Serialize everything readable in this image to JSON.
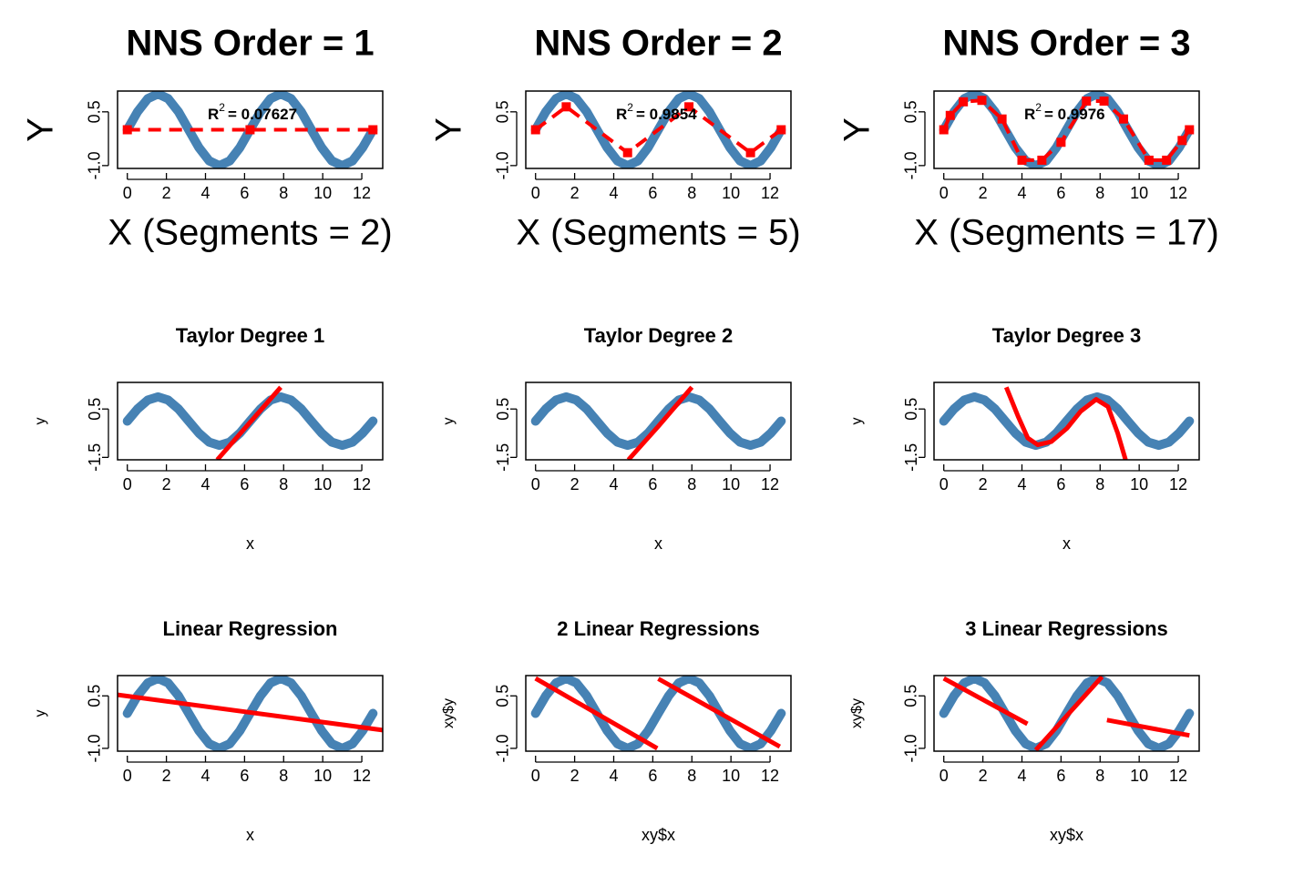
{
  "chart_data": [
    {
      "type": "line",
      "title": "NNS Order = 1",
      "xlabel": "X  (Segments = 2)",
      "ylabel": "Y",
      "annotation": {
        "text": "R",
        "sup": "2",
        "rest": "= 0.07627"
      },
      "xlim": [
        -0.5,
        13.07
      ],
      "xticks": [
        0,
        2,
        4,
        6,
        8,
        10,
        12
      ],
      "ylim": [
        -1.08,
        1.08
      ],
      "yticks": [
        {
          "value": -1,
          "label": "-1.0"
        },
        0.5
      ],
      "series": [
        {
          "color": "#4682b4",
          "x": [
            0,
            0.52,
            1.05,
            1.57,
            2.09,
            2.62,
            3.14,
            3.67,
            4.19,
            4.71,
            5.24,
            5.76,
            6.28,
            6.81,
            7.33,
            7.85,
            8.38,
            8.9,
            9.42,
            9.95,
            10.47,
            11,
            11.52,
            12.04,
            12.57
          ],
          "values": [
            0,
            0.5,
            0.87,
            1,
            0.87,
            0.5,
            0,
            -0.5,
            -0.87,
            -1,
            -0.87,
            -0.5,
            0,
            0.5,
            0.87,
            1,
            0.87,
            0.5,
            0,
            -0.5,
            -0.87,
            -1,
            -0.87,
            -0.5,
            0
          ]
        },
        {
          "color": "#ff0000",
          "dashed": true,
          "markers": true,
          "x": [
            0,
            6.28,
            12.57
          ],
          "values": [
            0,
            0,
            0
          ]
        }
      ]
    },
    {
      "type": "line",
      "title": "NNS Order = 2",
      "xlabel": "X  (Segments = 5)",
      "ylabel": "Y",
      "annotation": {
        "text": "R",
        "sup": "2",
        "rest": "= 0.9854"
      },
      "xlim": [
        -0.5,
        13.07
      ],
      "xticks": [
        0,
        2,
        4,
        6,
        8,
        10,
        12
      ],
      "ylim": [
        -1.08,
        1.08
      ],
      "yticks": [
        {
          "value": -1,
          "label": "-1.0"
        },
        0.5
      ],
      "series": [
        {
          "color": "#4682b4",
          "x": [
            0,
            0.52,
            1.05,
            1.57,
            2.09,
            2.62,
            3.14,
            3.67,
            4.19,
            4.71,
            5.24,
            5.76,
            6.28,
            6.81,
            7.33,
            7.85,
            8.38,
            8.9,
            9.42,
            9.95,
            10.47,
            11,
            11.52,
            12.04,
            12.57
          ],
          "values": [
            0,
            0.5,
            0.87,
            1,
            0.87,
            0.5,
            0,
            -0.5,
            -0.87,
            -1,
            -0.87,
            -0.5,
            0,
            0.5,
            0.87,
            1,
            0.87,
            0.5,
            0,
            -0.5,
            -0.87,
            -1,
            -0.87,
            -0.5,
            0
          ]
        },
        {
          "color": "#ff0000",
          "dashed": true,
          "markers": true,
          "x": [
            0,
            1.57,
            4.71,
            7.85,
            11,
            12.57
          ],
          "values": [
            0,
            0.64,
            -0.64,
            0.64,
            -0.64,
            0
          ]
        }
      ]
    },
    {
      "type": "line",
      "title": "NNS Order = 3",
      "xlabel": "X  (Segments = 17)",
      "ylabel": "Y",
      "annotation": {
        "text": "R",
        "sup": "2",
        "rest": "= 0.9976"
      },
      "xlim": [
        -0.5,
        13.07
      ],
      "xticks": [
        0,
        2,
        4,
        6,
        8,
        10,
        12
      ],
      "ylim": [
        -1.08,
        1.08
      ],
      "yticks": [
        {
          "value": -1,
          "label": "-1.0"
        },
        0.5
      ],
      "series": [
        {
          "color": "#4682b4",
          "x": [
            0,
            0.52,
            1.05,
            1.57,
            2.09,
            2.62,
            3.14,
            3.67,
            4.19,
            4.71,
            5.24,
            5.76,
            6.28,
            6.81,
            7.33,
            7.85,
            8.38,
            8.9,
            9.42,
            9.95,
            10.47,
            11,
            11.52,
            12.04,
            12.57
          ],
          "values": [
            0,
            0.5,
            0.87,
            1,
            0.87,
            0.5,
            0,
            -0.5,
            -0.87,
            -1,
            -0.87,
            -0.5,
            0,
            0.5,
            0.87,
            1,
            0.87,
            0.5,
            0,
            -0.5,
            -0.87,
            -1,
            -0.87,
            -0.5,
            0
          ]
        },
        {
          "color": "#ff0000",
          "dashed": true,
          "markers": true,
          "x": [
            0,
            0.33,
            1.0,
            1.95,
            2.98,
            4.0,
            5.02,
            6.0,
            7.3,
            8.2,
            9.2,
            10.5,
            11.4,
            12.2,
            12.57
          ],
          "values": [
            0,
            0.4,
            0.78,
            0.82,
            0.3,
            -0.85,
            -0.85,
            -0.35,
            0.8,
            0.8,
            0.3,
            -0.85,
            -0.85,
            -0.3,
            0
          ]
        }
      ]
    },
    {
      "type": "line",
      "title": "Taylor Degree 1",
      "xlabel": "x",
      "ylabel": "y",
      "xlim": [
        -0.5,
        13.07
      ],
      "xticks": [
        0,
        2,
        4,
        6,
        8,
        10,
        12
      ],
      "ylim": [
        -1.6,
        1.6
      ],
      "yticks": [
        -1.5,
        0.5
      ],
      "series": [
        {
          "color": "#4682b4",
          "x": [
            0,
            0.52,
            1.05,
            1.57,
            2.09,
            2.62,
            3.14,
            3.67,
            4.19,
            4.71,
            5.24,
            5.76,
            6.28,
            6.81,
            7.33,
            7.85,
            8.38,
            8.9,
            9.42,
            9.95,
            10.47,
            11,
            11.52,
            12.04,
            12.57
          ],
          "values": [
            0,
            0.5,
            0.87,
            1,
            0.87,
            0.5,
            0,
            -0.5,
            -0.87,
            -1,
            -0.87,
            -0.5,
            0,
            0.5,
            0.87,
            1,
            0.87,
            0.5,
            0,
            -0.5,
            -0.87,
            -1,
            -0.87,
            -0.5,
            0
          ]
        },
        {
          "color": "#ff0000",
          "x": [
            4.6,
            7.85
          ],
          "values": [
            -1.6,
            1.4
          ]
        }
      ]
    },
    {
      "type": "line",
      "title": "Taylor Degree 2",
      "xlabel": "x",
      "ylabel": "y",
      "xlim": [
        -0.5,
        13.07
      ],
      "xticks": [
        0,
        2,
        4,
        6,
        8,
        10,
        12
      ],
      "ylim": [
        -1.6,
        1.6
      ],
      "yticks": [
        -1.5,
        0.5
      ],
      "series": [
        {
          "color": "#4682b4",
          "x": [
            0,
            0.52,
            1.05,
            1.57,
            2.09,
            2.62,
            3.14,
            3.67,
            4.19,
            4.71,
            5.24,
            5.76,
            6.28,
            6.81,
            7.33,
            7.85,
            8.38,
            8.9,
            9.42,
            9.95,
            10.47,
            11,
            11.52,
            12.04,
            12.57
          ],
          "values": [
            0,
            0.5,
            0.87,
            1,
            0.87,
            0.5,
            0,
            -0.5,
            -0.87,
            -1,
            -0.87,
            -0.5,
            0,
            0.5,
            0.87,
            1,
            0.87,
            0.5,
            0,
            -0.5,
            -0.87,
            -1,
            -0.87,
            -0.5,
            0
          ]
        },
        {
          "color": "#ff0000",
          "x": [
            4.75,
            6.3,
            8.0
          ],
          "values": [
            -1.6,
            -0.2,
            1.4
          ]
        }
      ]
    },
    {
      "type": "line",
      "title": "Taylor Degree 3",
      "xlabel": "x",
      "ylabel": "y",
      "xlim": [
        -0.5,
        13.07
      ],
      "xticks": [
        0,
        2,
        4,
        6,
        8,
        10,
        12
      ],
      "ylim": [
        -1.6,
        1.6
      ],
      "yticks": [
        -1.5,
        0.5
      ],
      "series": [
        {
          "color": "#4682b4",
          "x": [
            0,
            0.52,
            1.05,
            1.57,
            2.09,
            2.62,
            3.14,
            3.67,
            4.19,
            4.71,
            5.24,
            5.76,
            6.28,
            6.81,
            7.33,
            7.85,
            8.38,
            8.9,
            9.42,
            9.95,
            10.47,
            11,
            11.52,
            12.04,
            12.57
          ],
          "values": [
            0,
            0.5,
            0.87,
            1,
            0.87,
            0.5,
            0,
            -0.5,
            -0.87,
            -1,
            -0.87,
            -0.5,
            0,
            0.5,
            0.87,
            1,
            0.87,
            0.5,
            0,
            -0.5,
            -0.87,
            -1,
            -0.87,
            -0.5,
            0
          ]
        },
        {
          "color": "#ff0000",
          "x": [
            3.2,
            3.8,
            4.3,
            4.8,
            5.5,
            6.3,
            7.0,
            7.8,
            8.4,
            8.9,
            9.3
          ],
          "values": [
            1.4,
            0.2,
            -0.7,
            -0.98,
            -0.85,
            -0.3,
            0.4,
            0.9,
            0.6,
            -0.5,
            -1.6
          ]
        }
      ]
    },
    {
      "type": "line",
      "title": "Linear Regression",
      "xlabel": "x",
      "ylabel": "y",
      "xlim": [
        -0.5,
        13.07
      ],
      "xticks": [
        0,
        2,
        4,
        6,
        8,
        10,
        12
      ],
      "ylim": [
        -1.08,
        1.08
      ],
      "yticks": [
        {
          "value": -1,
          "label": "-1.0"
        },
        0.5
      ],
      "series": [
        {
          "color": "#4682b4",
          "x": [
            0,
            0.52,
            1.05,
            1.57,
            2.09,
            2.62,
            3.14,
            3.67,
            4.19,
            4.71,
            5.24,
            5.76,
            6.28,
            6.81,
            7.33,
            7.85,
            8.38,
            8.9,
            9.42,
            9.95,
            10.47,
            11,
            11.52,
            12.04,
            12.57
          ],
          "values": [
            0,
            0.5,
            0.87,
            1,
            0.87,
            0.5,
            0,
            -0.5,
            -0.87,
            -1,
            -0.87,
            -0.5,
            0,
            0.5,
            0.87,
            1,
            0.87,
            0.5,
            0,
            -0.5,
            -0.87,
            -1,
            -0.87,
            -0.5,
            0
          ]
        },
        {
          "color": "#ff0000",
          "x": [
            -0.5,
            13.07
          ],
          "values": [
            0.53,
            -0.48
          ]
        }
      ]
    },
    {
      "type": "line",
      "title": "2 Linear Regressions",
      "xlabel": "xy$x",
      "ylabel": "xy$y",
      "xlim": [
        -0.5,
        13.07
      ],
      "xticks": [
        0,
        2,
        4,
        6,
        8,
        10,
        12
      ],
      "ylim": [
        -1.08,
        1.08
      ],
      "yticks": [
        {
          "value": -1,
          "label": "-1.0"
        },
        0.5
      ],
      "series": [
        {
          "color": "#4682b4",
          "x": [
            0,
            0.52,
            1.05,
            1.57,
            2.09,
            2.62,
            3.14,
            3.67,
            4.19,
            4.71,
            5.24,
            5.76,
            6.28,
            6.81,
            7.33,
            7.85,
            8.38,
            8.9,
            9.42,
            9.95,
            10.47,
            11,
            11.52,
            12.04,
            12.57
          ],
          "values": [
            0,
            0.5,
            0.87,
            1,
            0.87,
            0.5,
            0,
            -0.5,
            -0.87,
            -1,
            -0.87,
            -0.5,
            0,
            0.5,
            0.87,
            1,
            0.87,
            0.5,
            0,
            -0.5,
            -0.87,
            -1,
            -0.87,
            -0.5,
            0
          ]
        },
        {
          "color": "#ff0000",
          "x": [
            0,
            6.23,
            6.25,
            6.28,
            12.5
          ],
          "values": [
            1.0,
            -1.0,
            null,
            0.99,
            -0.95
          ]
        }
      ]
    },
    {
      "type": "line",
      "title": "3 Linear Regressions",
      "xlabel": "xy$x",
      "ylabel": "xy$y",
      "xlim": [
        -0.5,
        13.07
      ],
      "xticks": [
        0,
        2,
        4,
        6,
        8,
        10,
        12
      ],
      "ylim": [
        -1.08,
        1.08
      ],
      "yticks": [
        {
          "value": -1,
          "label": "-1.0"
        },
        0.5
      ],
      "series": [
        {
          "color": "#4682b4",
          "x": [
            0,
            0.52,
            1.05,
            1.57,
            2.09,
            2.62,
            3.14,
            3.67,
            4.19,
            4.71,
            5.24,
            5.76,
            6.28,
            6.81,
            7.33,
            7.85,
            8.38,
            8.9,
            9.42,
            9.95,
            10.47,
            11,
            11.52,
            12.04,
            12.57
          ],
          "values": [
            0,
            0.5,
            0.87,
            1,
            0.87,
            0.5,
            0,
            -0.5,
            -0.87,
            -1,
            -0.87,
            -0.5,
            0,
            0.5,
            0.87,
            1,
            0.87,
            0.5,
            0,
            -0.5,
            -0.87,
            -1,
            -0.87,
            -0.5,
            0
          ]
        },
        {
          "color": "#ff0000",
          "x": [
            0,
            4.28,
            4.5,
            4.71,
            8.1,
            8.2,
            8.35,
            12.57
          ],
          "values": [
            1.0,
            -0.3,
            null,
            -1.05,
            1.05,
            null,
            -0.19,
            -0.63
          ]
        }
      ]
    }
  ]
}
